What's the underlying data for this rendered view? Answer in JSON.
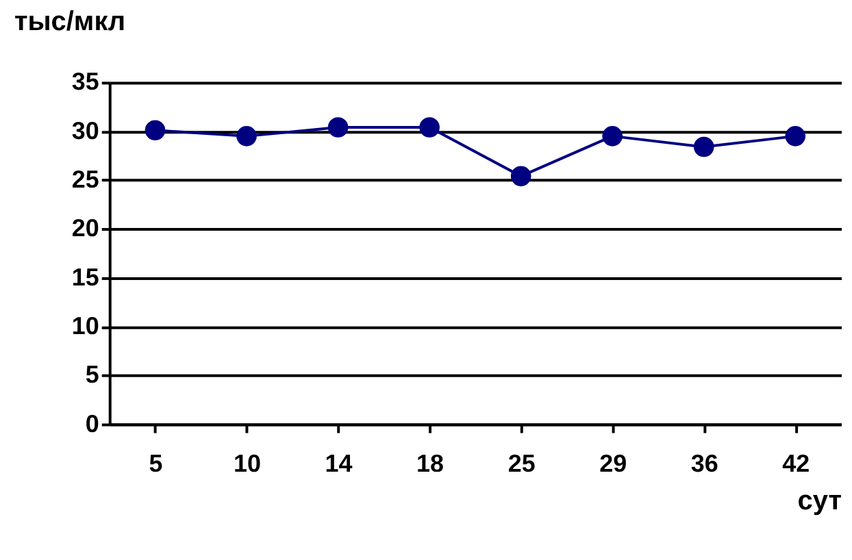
{
  "chart_data": {
    "type": "line",
    "xlabel": "сут",
    "ylabel": "тыс/мкл",
    "categories": [
      "5",
      "10",
      "14",
      "18",
      "25",
      "29",
      "36",
      "42"
    ],
    "series": [
      {
        "color": "#000080",
        "values": [
          30.1,
          29.5,
          30.4,
          30.4,
          25.4,
          29.5,
          28.4,
          29.5
        ]
      }
    ],
    "ylim": [
      0,
      35
    ],
    "yticks": [
      0,
      5,
      10,
      15,
      20,
      25,
      30,
      35
    ],
    "grid": "y",
    "marker": "circle",
    "line_style": "solid"
  }
}
